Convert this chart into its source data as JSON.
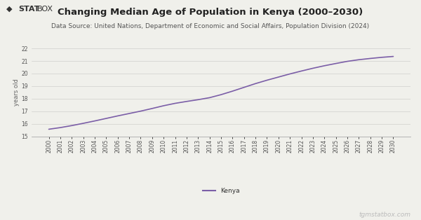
{
  "title": "Changing Median Age of Population in Kenya (2000–2030)",
  "subtitle": "Data Source: United Nations, Department of Economic and Social Affairs, Population Division (2024)",
  "ylabel": "years old",
  "watermark": "tgmstatbox.com",
  "legend_label": "Kenya",
  "line_color": "#7b5ea7",
  "background_color": "#f0f0eb",
  "plot_bg_color": "#f0f0eb",
  "years": [
    2000,
    2001,
    2002,
    2003,
    2004,
    2005,
    2006,
    2007,
    2008,
    2009,
    2010,
    2011,
    2012,
    2013,
    2014,
    2015,
    2016,
    2017,
    2018,
    2019,
    2020,
    2021,
    2022,
    2023,
    2024,
    2025,
    2026,
    2027,
    2028,
    2029,
    2030
  ],
  "values": [
    15.57,
    15.7,
    15.86,
    16.04,
    16.23,
    16.43,
    16.63,
    16.82,
    17.01,
    17.22,
    17.44,
    17.63,
    17.78,
    17.92,
    18.08,
    18.32,
    18.6,
    18.9,
    19.2,
    19.47,
    19.72,
    19.97,
    20.2,
    20.42,
    20.62,
    20.8,
    20.97,
    21.1,
    21.2,
    21.29,
    21.36
  ],
  "ylim": [
    15,
    22
  ],
  "yticks": [
    15,
    16,
    17,
    18,
    19,
    20,
    21,
    22
  ],
  "title_fontsize": 9.5,
  "subtitle_fontsize": 6.5,
  "tick_fontsize": 5.5,
  "ylabel_fontsize": 6,
  "legend_fontsize": 6.5,
  "watermark_fontsize": 6.5
}
